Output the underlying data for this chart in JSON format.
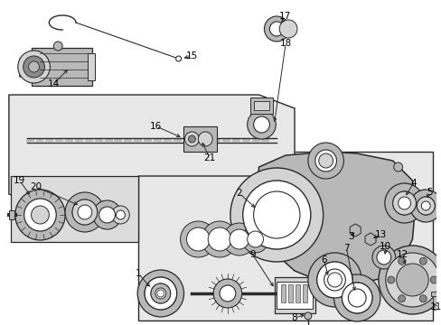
{
  "bg_color": "#ffffff",
  "panel_color": "#e8e8e8",
  "line_color": "#2a2a2a",
  "gray_light": "#d4d4d4",
  "gray_mid": "#b8b8b8",
  "gray_dark": "#8a8a8a"
}
